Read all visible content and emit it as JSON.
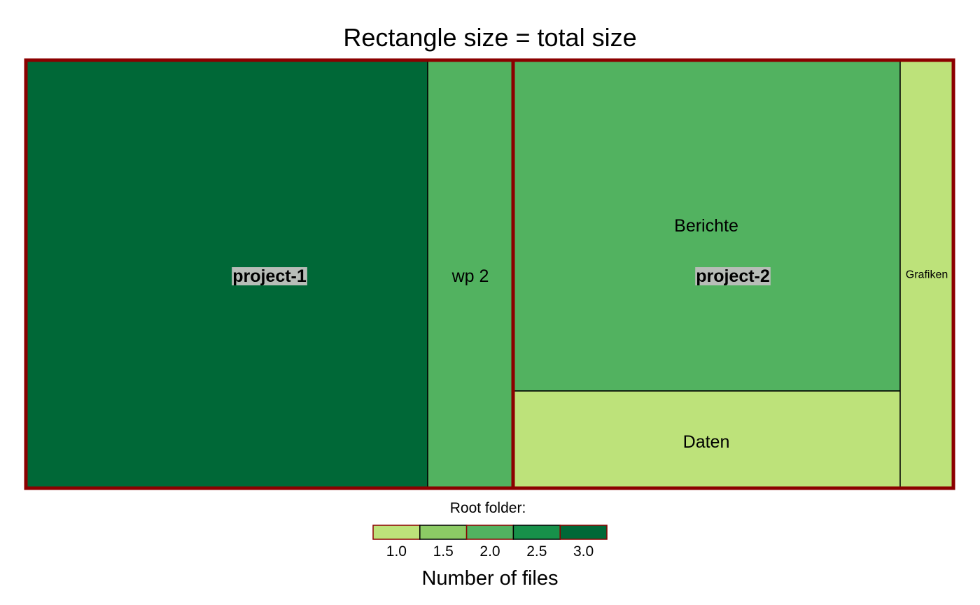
{
  "chart_data": {
    "type": "treemap",
    "title": "Rectangle size = total size",
    "colors": {
      "group_border": "#8b0000",
      "leaf_border": "#000000",
      "group_label_bg": "#b8bdb8"
    },
    "groups": [
      {
        "name": "project-1",
        "leaves": [
          {
            "name": "",
            "files": 3.0
          },
          {
            "name": "wp 2",
            "files": 2.0
          }
        ]
      },
      {
        "name": "project-2",
        "leaves": [
          {
            "name": "Berichte",
            "files": 2.0
          },
          {
            "name": "Daten",
            "files": 1.0
          },
          {
            "name": "Grafiken",
            "files": 1.0
          }
        ]
      }
    ],
    "legend": {
      "title": "Root folder:",
      "xlabel": "Number of files",
      "bins": [
        {
          "label": "1.0",
          "color": "#bde27a"
        },
        {
          "label": "1.5",
          "color": "#8ccb65"
        },
        {
          "label": "2.0",
          "color": "#52b260"
        },
        {
          "label": "2.5",
          "color": "#17914a"
        },
        {
          "label": "3.0",
          "color": "#006837"
        }
      ]
    }
  }
}
